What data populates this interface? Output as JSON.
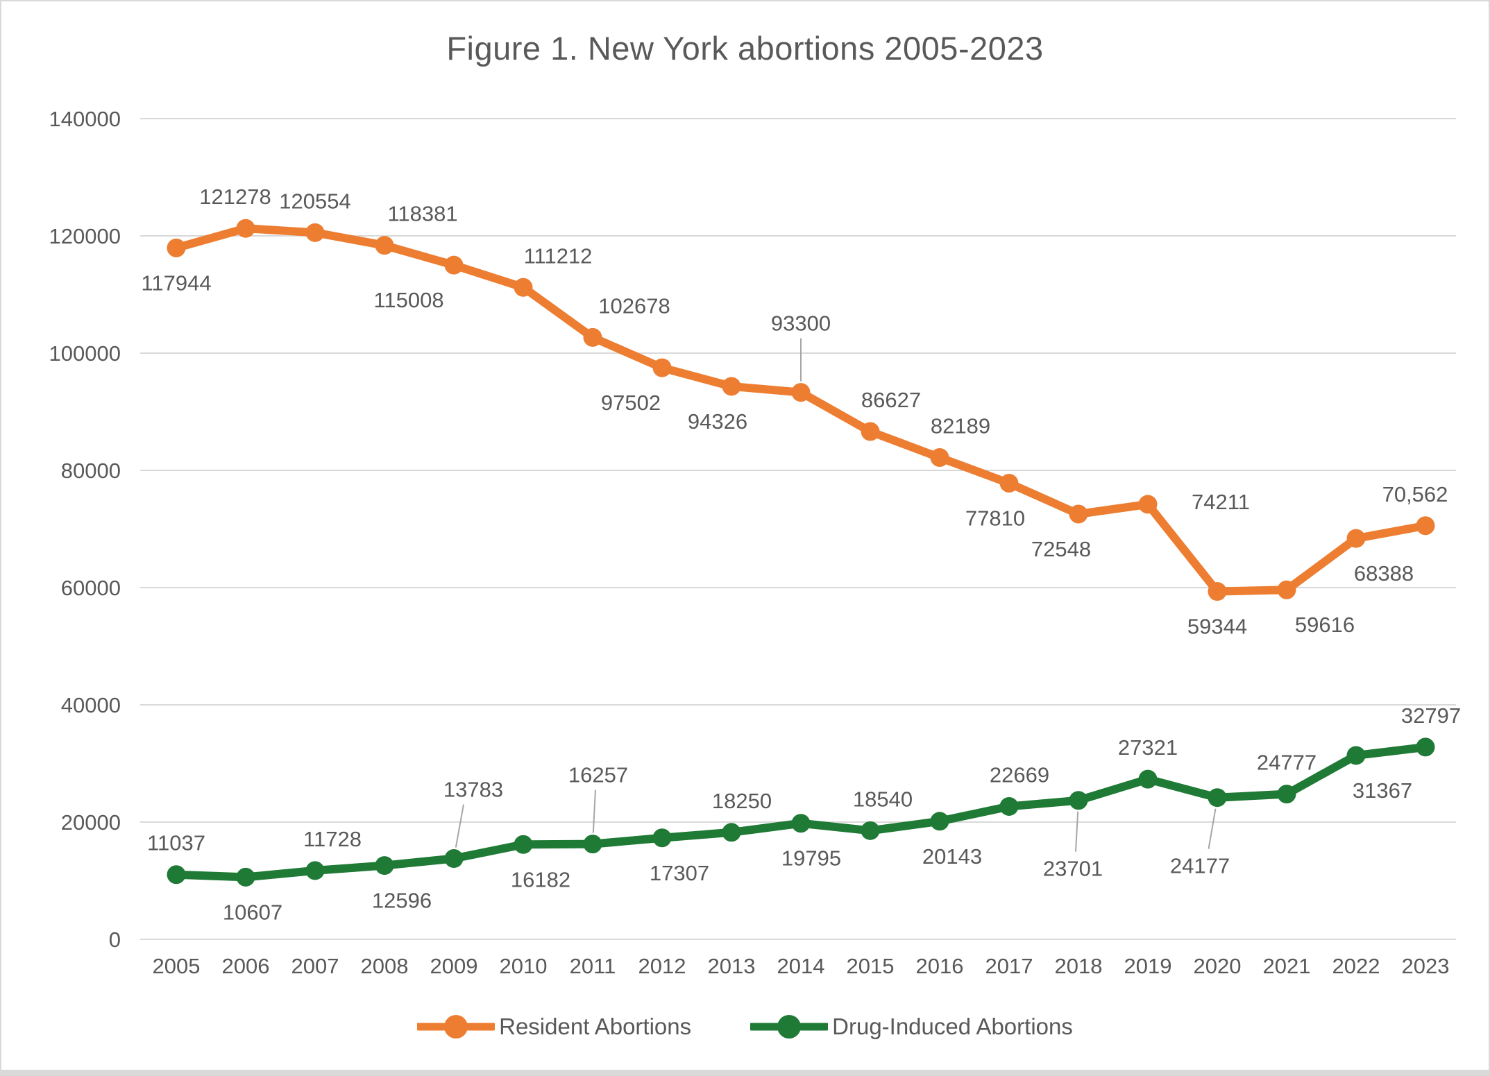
{
  "title": "Figure 1. New York abortions 2005-2023",
  "colors": {
    "resident": "#ED7D31",
    "drug_induced": "#1F7A35",
    "grid": "#D9D9D9",
    "text": "#595959",
    "leader": "#A6A6A6",
    "background": "#FFFFFF",
    "frame_border": "#D9D9D9"
  },
  "chart_data": {
    "type": "line",
    "title": "Figure 1. New York abortions 2005-2023",
    "xlabel": "",
    "ylabel": "",
    "ylim": [
      0,
      140000
    ],
    "ytick_step": 20000,
    "grid": true,
    "legend_position": "bottom",
    "categories": [
      "2005",
      "2006",
      "2007",
      "2008",
      "2009",
      "2010",
      "2011",
      "2012",
      "2013",
      "2014",
      "2015",
      "2016",
      "2017",
      "2018",
      "2019",
      "2020",
      "2021",
      "2022",
      "2023"
    ],
    "ytick_labels": [
      "0",
      "20000",
      "40000",
      "60000",
      "80000",
      "100000",
      "120000",
      "140000"
    ],
    "series": [
      {
        "name": "Resident Abortions",
        "color": "#ED7D31",
        "values": [
          117944,
          121278,
          120554,
          118381,
          115008,
          111212,
          102678,
          97502,
          94326,
          93300,
          86627,
          82189,
          77810,
          72548,
          74211,
          59344,
          59616,
          68388,
          70562
        ],
        "labels": [
          "117944",
          "121278",
          "120554",
          "118381",
          "115008",
          "111212",
          "102678",
          "97502",
          "94326",
          "93300",
          "86627",
          "82189",
          "77810",
          "72548",
          "74211",
          "59344",
          "59616",
          "68388",
          "70,562"
        ],
        "label_placement": [
          {
            "pos": "below",
            "dx": 0
          },
          {
            "pos": "above",
            "dx": -15
          },
          {
            "pos": "above",
            "dx": 0
          },
          {
            "pos": "above",
            "dx": 55
          },
          {
            "pos": "below",
            "dx": -65
          },
          {
            "pos": "above",
            "dx": 50
          },
          {
            "pos": "above",
            "dx": 60
          },
          {
            "pos": "below",
            "dx": -45
          },
          {
            "pos": "below",
            "dx": -20
          },
          {
            "pos": "leader-above",
            "dx": 0
          },
          {
            "pos": "above",
            "dx": 30
          },
          {
            "pos": "above",
            "dx": 30
          },
          {
            "pos": "below",
            "dx": -20
          },
          {
            "pos": "below",
            "dx": -25
          },
          {
            "pos": "right",
            "dx": 0
          },
          {
            "pos": "below",
            "dx": 0
          },
          {
            "pos": "below",
            "dx": 55
          },
          {
            "pos": "below",
            "dx": 40
          },
          {
            "pos": "above",
            "dx": -15
          }
        ]
      },
      {
        "name": "Drug-Induced Abortions",
        "color": "#1F7A35",
        "values": [
          11037,
          10607,
          11728,
          12596,
          13783,
          16182,
          16257,
          17307,
          18250,
          19795,
          18540,
          20143,
          22669,
          23701,
          27321,
          24177,
          24777,
          31367,
          32797
        ],
        "labels": [
          "11037",
          "10607",
          "11728",
          "12596",
          "13783",
          "16182",
          "16257",
          "17307",
          "18250",
          "19795",
          "18540",
          "20143",
          "22669",
          "23701",
          "27321",
          "24177",
          "24777",
          "31367",
          "32797"
        ],
        "label_placement": [
          {
            "pos": "above",
            "dx": 0
          },
          {
            "pos": "below",
            "dx": 10
          },
          {
            "pos": "above",
            "dx": 25
          },
          {
            "pos": "below",
            "dx": 25
          },
          {
            "pos": "leader-above",
            "dx": 28
          },
          {
            "pos": "below",
            "dx": 25
          },
          {
            "pos": "leader-above",
            "dx": 8
          },
          {
            "pos": "below",
            "dx": 25
          },
          {
            "pos": "above",
            "dx": 15
          },
          {
            "pos": "below",
            "dx": 15
          },
          {
            "pos": "above",
            "dx": 18
          },
          {
            "pos": "below",
            "dx": 18
          },
          {
            "pos": "above",
            "dx": 15
          },
          {
            "pos": "leader-below",
            "dx": -8
          },
          {
            "pos": "above",
            "dx": 0
          },
          {
            "pos": "leader-below",
            "dx": -25
          },
          {
            "pos": "above",
            "dx": 0
          },
          {
            "pos": "below",
            "dx": 38
          },
          {
            "pos": "above",
            "dx": 10
          }
        ]
      }
    ]
  },
  "legend": {
    "items": [
      {
        "label": "Resident Abortions",
        "series": "resident"
      },
      {
        "label": "Drug-Induced Abortions",
        "series": "drug_induced"
      }
    ]
  }
}
